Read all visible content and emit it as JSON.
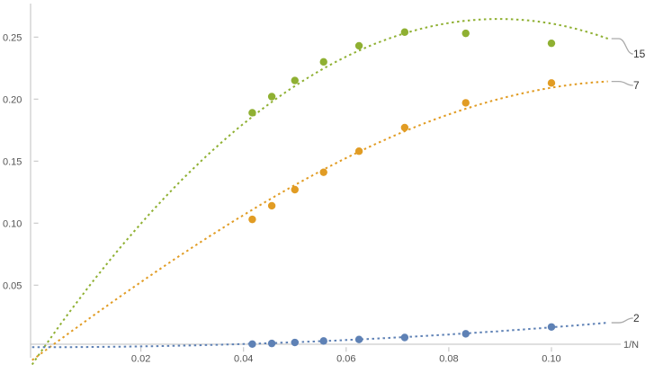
{
  "chart_data": {
    "type": "scatter",
    "xlabel": "1/N",
    "ylabel": "",
    "xlim": [
      -0.0015,
      0.1135
    ],
    "ylim": [
      -0.0085,
      0.277
    ],
    "x_ticks": [
      0.02,
      0.04,
      0.06,
      0.08,
      0.1
    ],
    "x_tick_labels": [
      "0.02",
      "0.04",
      "0.06",
      "0.08",
      "0.10"
    ],
    "y_ticks": [
      0.05,
      0.1,
      0.15,
      0.2,
      0.25
    ],
    "y_tick_labels": [
      "0.05",
      "0.10",
      "0.15",
      "0.20",
      "0.25"
    ],
    "grid": false,
    "legend": "line labels at right end",
    "series": [
      {
        "name": "15",
        "color": "#8fb032",
        "points": [
          {
            "x": 0.0417,
            "y": 0.189
          },
          {
            "x": 0.0455,
            "y": 0.202
          },
          {
            "x": 0.05,
            "y": 0.215
          },
          {
            "x": 0.0556,
            "y": 0.23
          },
          {
            "x": 0.0625,
            "y": 0.243
          },
          {
            "x": 0.0714,
            "y": 0.254
          },
          {
            "x": 0.0833,
            "y": 0.253
          },
          {
            "x": 0.1,
            "y": 0.245
          }
        ],
        "fit_poly": [
          -0.0068,
          5.96,
          -31.7,
          -11.3
        ]
      },
      {
        "name": "7",
        "color": "#e19c24",
        "points": [
          {
            "x": 0.0417,
            "y": 0.103
          },
          {
            "x": 0.0455,
            "y": 0.114
          },
          {
            "x": 0.05,
            "y": 0.127
          },
          {
            "x": 0.0556,
            "y": 0.141
          },
          {
            "x": 0.0625,
            "y": 0.158
          },
          {
            "x": 0.0714,
            "y": 0.177
          },
          {
            "x": 0.0833,
            "y": 0.197
          },
          {
            "x": 0.1,
            "y": 0.213
          }
        ],
        "fit_poly": [
          -0.0068,
          3.05,
          -3.1,
          -58.0
        ]
      },
      {
        "name": "2",
        "color": "#5e81b5",
        "points": [
          {
            "x": 0.0417,
            "y": 0.0025
          },
          {
            "x": 0.0455,
            "y": 0.003
          },
          {
            "x": 0.05,
            "y": 0.0038
          },
          {
            "x": 0.0556,
            "y": 0.005
          },
          {
            "x": 0.0625,
            "y": 0.0062
          },
          {
            "x": 0.0714,
            "y": 0.0078
          },
          {
            "x": 0.0833,
            "y": 0.0108
          },
          {
            "x": 0.1,
            "y": 0.0163
          }
        ],
        "fit_poly": [
          0,
          0,
          1.6,
          0
        ]
      }
    ]
  }
}
